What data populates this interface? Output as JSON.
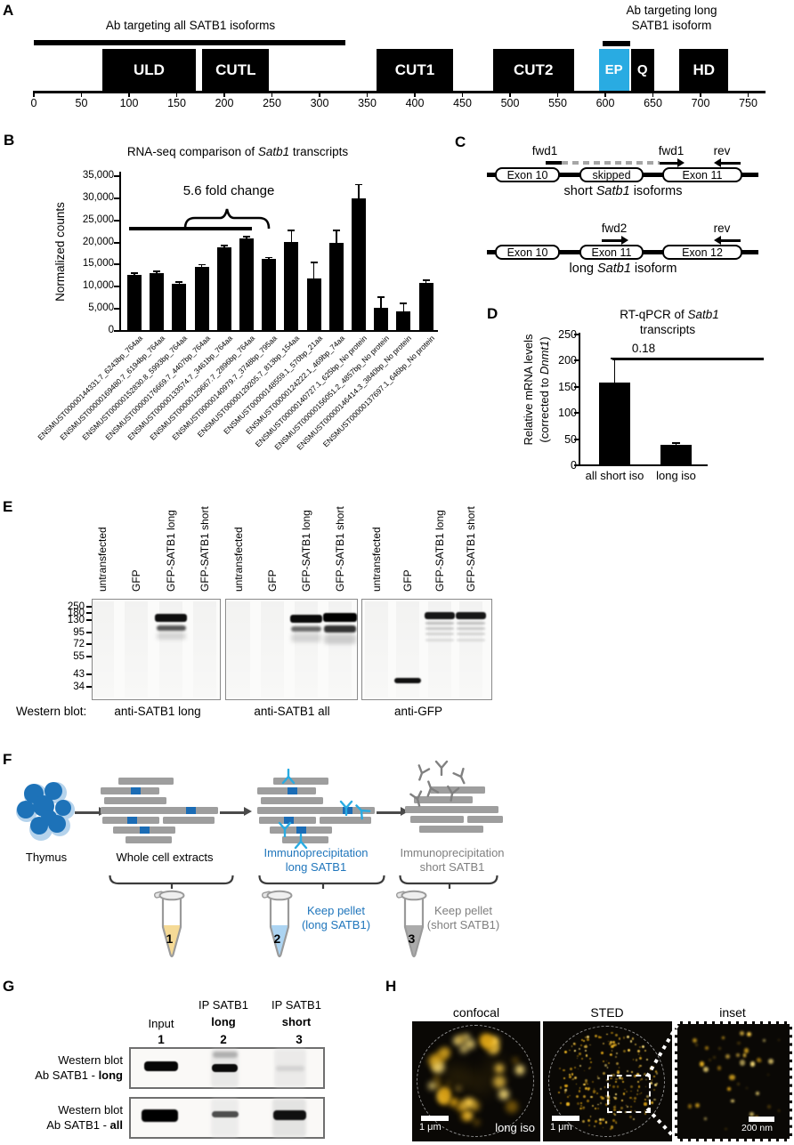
{
  "colors": {
    "ep_blue": "#29ABE2",
    "ip_blue_text": "#2076BC",
    "antigen_blue": "#1B6CB5",
    "ip_gray_text": "#7F7F7F",
    "extract_gray": "#9E9E9E",
    "tube1_fill": "#F5DA96",
    "tube2_fill": "#ACD4F2",
    "tube3_fill": "#ABABAB",
    "blot_border": "#8A8A8A",
    "dot_gold": "#F0B41E"
  },
  "panelA": {
    "label": "A",
    "ab_all": "Ab targeting all SATB1 isoforms",
    "ab_long_line1": "Ab targeting long",
    "ab_long_line2": "SATB1 isoform",
    "domains": [
      {
        "name": "ULD",
        "start": 72,
        "end": 170
      },
      {
        "name": "CUTL",
        "start": 177,
        "end": 247
      },
      {
        "name": "CUT1",
        "start": 360,
        "end": 440
      },
      {
        "name": "CUT2",
        "start": 482,
        "end": 567
      },
      {
        "name": "EP",
        "start": 593,
        "end": 625,
        "highlight": true
      },
      {
        "name": "Q",
        "start": 625,
        "end": 651
      },
      {
        "name": "HD",
        "start": 678,
        "end": 729
      }
    ],
    "ticks": [
      0,
      50,
      100,
      150,
      200,
      250,
      300,
      350,
      400,
      450,
      500,
      550,
      600,
      650,
      700,
      750
    ]
  },
  "chart_data": [
    {
      "id": "B",
      "type": "bar",
      "panel_label": "B",
      "title_pre": "RNA-seq comparison of ",
      "title_it": "Satb1",
      "title_suf": " transcripts",
      "ylabel": "Normalized counts",
      "ylim": [
        0,
        35000
      ],
      "ytick_step": 5000,
      "annotation": "5.6 fold change",
      "categories": [
        "ENSMUST00000144331.7_6243bp_764aa",
        "ENSMUST00000169480.7_6194bp_764aa",
        "ENSMUST00000152830.8_5993bp_764aa",
        "ENSMUST00000176669.7_4407bp_764aa",
        "ENSMUST00000133574.7_3461bp_764aa",
        "ENSMUST00000129667.7_2896bp_764aa",
        "ENSMUST00000140979.7_3748bp_795aa",
        "ENSMUST00000129205.7_813bp_154aa",
        "ENSMUST00000148559.1_570bp_21aa",
        "ENSMUST00000124222.1_469bp_74aa",
        "ENSMUST00000140727.1_625bp_No protein",
        "ENSMUST00000156051.2_4857bp_No protein",
        "ENSMUST00000146414.3_3840bp_No protein",
        "ENSMUST00000137697.1_646bp_No protein"
      ],
      "values": [
        12700,
        13000,
        10700,
        14500,
        19000,
        21000,
        16200,
        20100,
        11800,
        20000,
        29900,
        5200,
        4500,
        10800
      ],
      "errors": [
        300,
        400,
        400,
        500,
        300,
        400,
        400,
        2700,
        3700,
        2800,
        3200,
        2500,
        1700,
        700
      ]
    },
    {
      "id": "D",
      "type": "bar",
      "panel_label": "D",
      "title_pre": "RT-qPCR of ",
      "title_it": "Satb1",
      "title_line2": "transcripts",
      "ylabel_line1": "Relative mRNA levels",
      "ylabel2_pre": "(corrected to ",
      "ylabel2_it": "Dnmt1",
      "ylabel2_suf": ")",
      "ylim": [
        0,
        250
      ],
      "ytick_step": 50,
      "annotation": "0.18",
      "categories": [
        "all short iso",
        "long iso"
      ],
      "values": [
        158,
        39
      ],
      "errors": [
        46,
        4
      ]
    }
  ],
  "panelC": {
    "label": "C",
    "short": {
      "exons": [
        "Exon 10",
        "skipped",
        "Exon 11"
      ],
      "primer_fwd_a": "fwd1",
      "primer_fwd_b": "fwd1",
      "primer_rev": "rev",
      "caption_pre": "short ",
      "caption_it": "Satb1",
      "caption_suf": " isoforms"
    },
    "long": {
      "exons": [
        "Exon 10",
        "Exon 11",
        "Exon 12"
      ],
      "primer_fwd": "fwd2",
      "primer_rev": "rev",
      "caption_pre": "long ",
      "caption_it": "Satb1",
      "caption_suf": " isoform"
    }
  },
  "panelE": {
    "label": "E",
    "lanes": [
      "untransfected",
      "GFP",
      "GFP-SATB1 long",
      "GFP-SATB1 short"
    ],
    "mw": [
      "250",
      "180",
      "130",
      "95",
      "72",
      "55",
      "43",
      "34"
    ],
    "caption": "Western blot:",
    "blots": [
      {
        "antibody": "anti-SATB1 long"
      },
      {
        "antibody": "anti-SATB1 all"
      },
      {
        "antibody": "anti-GFP"
      }
    ]
  },
  "panelF": {
    "label": "F",
    "source": "Thymus",
    "step1": "Whole cell extracts",
    "step2_line1": "Immunoprecipitation",
    "step2_line2": "long SATB1",
    "step3_line1": "Immunoprecipitation",
    "step3_line2": "short SATB1",
    "keep2_line1": "Keep pellet",
    "keep2_line2": "(long SATB1)",
    "keep3_line1": "Keep pellet",
    "keep3_line2": "(short SATB1)",
    "tube_numbers": [
      "1",
      "2",
      "3"
    ]
  },
  "panelG": {
    "label": "G",
    "col_input": "Input",
    "num1": "1",
    "col_ip": "IP SATB1",
    "col2_bold": "long",
    "num2": "2",
    "col3_bold": "short",
    "num3": "3",
    "row_line1": "Western blot",
    "row_pre": "Ab SATB1 - ",
    "row1_bold": "long",
    "row2_bold": "all"
  },
  "panelH": {
    "label": "H",
    "titles": [
      "confocal",
      "STED",
      "inset"
    ],
    "scalebars": [
      "1 μm",
      "1 μm",
      "200 nm"
    ],
    "corner_label": "long iso"
  }
}
